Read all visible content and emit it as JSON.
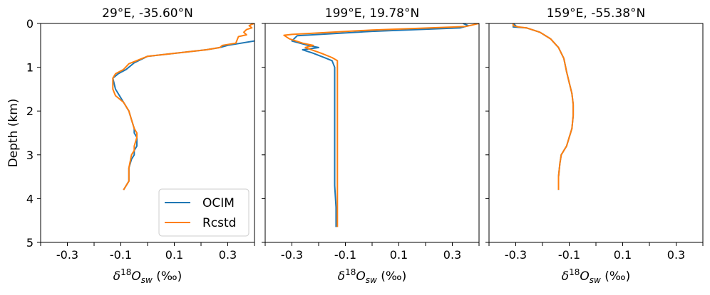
{
  "chart_data": [
    {
      "type": "line",
      "title": "29°E, -35.60°N",
      "xlabel_parts": [
        "δ",
        "18",
        "O",
        "sw",
        " (‰)"
      ],
      "ylabel": "Depth (km)",
      "xlim": [
        -0.4,
        0.4
      ],
      "ylim": [
        5,
        0
      ],
      "x_ticks": [
        -0.3,
        -0.1,
        0.1,
        0.3
      ],
      "x_tick_labels": [
        "-0.3",
        "-0.1",
        "0.1",
        "0.3"
      ],
      "y_ticks": [
        0,
        1,
        2,
        3,
        4,
        5
      ],
      "y_tick_labels": [
        "0",
        "1",
        "2",
        "3",
        "4",
        "5"
      ],
      "show_y_tick_labels": true,
      "legend": {
        "show": true,
        "position": "lower-right"
      },
      "series": [
        {
          "name": "OCIM",
          "color": "#1f77b4",
          "x": [
            0.4,
            0.3,
            0.27,
            0.22,
            0.0,
            -0.05,
            -0.08,
            -0.11,
            -0.13,
            -0.12,
            -0.09,
            -0.07,
            -0.06,
            -0.05,
            -0.05,
            -0.04,
            -0.04,
            -0.05,
            -0.05,
            -0.06,
            -0.07,
            -0.07,
            -0.09
          ],
          "y": [
            0.4,
            0.5,
            0.55,
            0.6,
            0.75,
            0.9,
            1.05,
            1.15,
            1.25,
            1.5,
            1.8,
            2.0,
            2.2,
            2.4,
            2.5,
            2.6,
            2.8,
            2.9,
            3.0,
            3.1,
            3.3,
            3.6,
            3.8
          ]
        },
        {
          "name": "Rcstd",
          "color": "#ff7f0e",
          "x": [
            0.4,
            0.39,
            0.38,
            0.39,
            0.37,
            0.36,
            0.37,
            0.34,
            0.33,
            0.28,
            0.27,
            0.22,
            0.0,
            -0.07,
            -0.09,
            -0.12,
            -0.13,
            -0.13,
            -0.12,
            -0.09,
            -0.07,
            -0.06,
            -0.05,
            -0.04,
            -0.04,
            -0.05,
            -0.05,
            -0.06,
            -0.07,
            -0.07,
            -0.09
          ],
          "y": [
            0.0,
            0.02,
            0.05,
            0.1,
            0.14,
            0.2,
            0.26,
            0.3,
            0.45,
            0.5,
            0.55,
            0.6,
            0.75,
            0.92,
            1.05,
            1.15,
            1.25,
            1.5,
            1.65,
            1.8,
            2.0,
            2.2,
            2.4,
            2.5,
            2.6,
            2.8,
            2.9,
            3.0,
            3.3,
            3.6,
            3.8
          ]
        }
      ]
    },
    {
      "type": "line",
      "title": "199°E, 19.78°N",
      "xlabel_parts": [
        "δ",
        "18",
        "O",
        "sw",
        " (‰)"
      ],
      "ylabel": "",
      "xlim": [
        -0.4,
        0.4
      ],
      "ylim": [
        5,
        0
      ],
      "x_ticks": [
        -0.3,
        -0.1,
        0.1,
        0.3
      ],
      "x_tick_labels": [
        "-0.3",
        "-0.1",
        "0.1",
        "0.3"
      ],
      "y_ticks": [
        0,
        1,
        2,
        3,
        4,
        5
      ],
      "y_tick_labels": [
        "0",
        "1",
        "2",
        "3",
        "4",
        "5"
      ],
      "show_y_tick_labels": false,
      "legend": {
        "show": false
      },
      "series": [
        {
          "name": "OCIM",
          "color": "#1f77b4",
          "x": [
            0.34,
            0.36,
            0.33,
            0.0,
            -0.28,
            -0.3,
            -0.24,
            -0.2,
            -0.26,
            -0.22,
            -0.17,
            -0.15,
            -0.14,
            -0.14,
            -0.14,
            -0.14,
            -0.14,
            -0.14,
            -0.14,
            -0.14,
            -0.135,
            -0.135
          ],
          "y": [
            0.0,
            0.05,
            0.1,
            0.18,
            0.28,
            0.4,
            0.5,
            0.55,
            0.6,
            0.68,
            0.8,
            0.85,
            1.0,
            1.2,
            1.5,
            1.8,
            2.2,
            2.7,
            3.2,
            3.7,
            4.2,
            4.65
          ]
        },
        {
          "name": "Rcstd",
          "color": "#ff7f0e",
          "x": [
            0.4,
            0.35,
            0.0,
            -0.3,
            -0.33,
            -0.31,
            -0.26,
            -0.22,
            -0.25,
            -0.19,
            -0.15,
            -0.13,
            -0.13,
            -0.13,
            -0.13,
            -0.13,
            -0.13,
            -0.13,
            -0.13,
            -0.13,
            -0.13,
            -0.13
          ],
          "y": [
            0.0,
            0.07,
            0.15,
            0.25,
            0.27,
            0.35,
            0.45,
            0.5,
            0.55,
            0.68,
            0.78,
            0.85,
            1.0,
            1.2,
            1.5,
            1.8,
            2.2,
            2.7,
            3.2,
            3.7,
            4.2,
            4.65
          ]
        }
      ]
    },
    {
      "type": "line",
      "title": "159°E, -55.38°N",
      "xlabel_parts": [
        "δ",
        "18",
        "O",
        "sw",
        " (‰)"
      ],
      "ylabel": "",
      "xlim": [
        -0.4,
        0.4
      ],
      "ylim": [
        5,
        0
      ],
      "x_ticks": [
        -0.3,
        -0.1,
        0.1,
        0.3
      ],
      "x_tick_labels": [
        "-0.3",
        "-0.1",
        "0.1",
        "0.3"
      ],
      "y_ticks": [
        0,
        1,
        2,
        3,
        4,
        5
      ],
      "y_tick_labels": [
        "0",
        "1",
        "2",
        "3",
        "4",
        "5"
      ],
      "show_y_tick_labels": false,
      "legend": {
        "show": false
      },
      "series": [
        {
          "name": "OCIM",
          "color": "#1f77b4",
          "x": [
            -0.31,
            -0.3,
            -0.31,
            -0.26,
            -0.21,
            -0.17,
            -0.14,
            -0.12,
            -0.11,
            -0.1,
            -0.09,
            -0.085,
            -0.085,
            -0.09,
            -0.1,
            -0.11,
            -0.13,
            -0.135,
            -0.14,
            -0.14
          ],
          "y": [
            0.0,
            0.05,
            0.08,
            0.1,
            0.2,
            0.35,
            0.55,
            0.8,
            1.1,
            1.35,
            1.6,
            1.85,
            2.1,
            2.4,
            2.6,
            2.8,
            3.0,
            3.2,
            3.5,
            3.8
          ]
        },
        {
          "name": "Rcstd",
          "color": "#ff7f0e",
          "x": [
            -0.31,
            -0.31,
            -0.29,
            -0.26,
            -0.21,
            -0.17,
            -0.14,
            -0.12,
            -0.11,
            -0.1,
            -0.09,
            -0.085,
            -0.085,
            -0.09,
            -0.1,
            -0.11,
            -0.13,
            -0.135,
            -0.14,
            -0.14
          ],
          "y": [
            0.0,
            0.05,
            0.08,
            0.1,
            0.2,
            0.35,
            0.55,
            0.8,
            1.1,
            1.35,
            1.6,
            1.85,
            2.1,
            2.4,
            2.6,
            2.8,
            3.0,
            3.2,
            3.5,
            3.8
          ]
        }
      ]
    }
  ]
}
